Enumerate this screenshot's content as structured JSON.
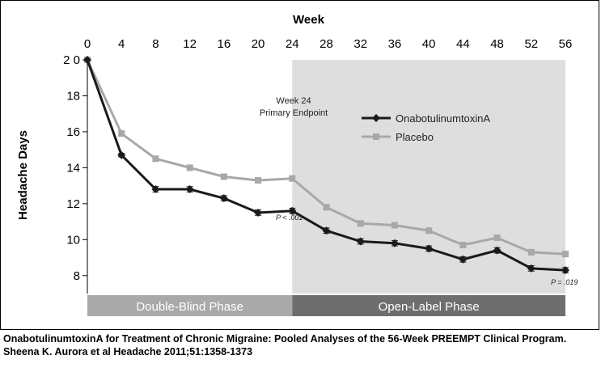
{
  "chart_data": {
    "type": "line",
    "title": "Week",
    "ylabel": "Headache Days",
    "xlim": [
      0,
      56
    ],
    "ylim": [
      7,
      20
    ],
    "x_ticks": [
      0,
      4,
      8,
      12,
      16,
      20,
      24,
      28,
      32,
      36,
      40,
      44,
      48,
      52,
      56
    ],
    "y_ticks": [
      {
        "value": 20,
        "label": "2 0"
      },
      {
        "value": 18,
        "label": "18"
      },
      {
        "value": 16,
        "label": "16"
      },
      {
        "value": 14,
        "label": "14"
      },
      {
        "value": 12,
        "label": "12"
      },
      {
        "value": 10,
        "label": "10"
      },
      {
        "value": 8,
        "label": "8"
      }
    ],
    "x": [
      0,
      4,
      8,
      12,
      16,
      20,
      24,
      28,
      32,
      36,
      40,
      44,
      48,
      52,
      56
    ],
    "series": [
      {
        "name": "OnabotulinumtoxinA",
        "color": "#1a1a1a",
        "marker": "diamond",
        "values": [
          20.0,
          14.7,
          12.8,
          12.8,
          12.3,
          11.5,
          11.6,
          10.5,
          9.9,
          9.8,
          9.5,
          8.9,
          9.4,
          8.4,
          8.3
        ],
        "error": [
          0,
          0.1,
          0.15,
          0.15,
          0.15,
          0.15,
          0.15,
          0.15,
          0.15,
          0.15,
          0.15,
          0.15,
          0.15,
          0.15,
          0.15
        ]
      },
      {
        "name": "Placebo",
        "color": "#a8a8a8",
        "marker": "square",
        "values": [
          20.0,
          15.9,
          14.5,
          14.0,
          13.5,
          13.3,
          13.4,
          11.8,
          10.9,
          10.8,
          10.5,
          9.7,
          10.1,
          9.3,
          9.2
        ],
        "error": [
          0,
          0.12,
          0.15,
          0.15,
          0.15,
          0.15,
          0.15,
          0.15,
          0.15,
          0.15,
          0.15,
          0.15,
          0.15,
          0.15,
          0.15
        ]
      }
    ],
    "annotations": {
      "week24_line1": "Week 24",
      "week24_line2": "Primary Endpoint",
      "p_week24": "P < .001",
      "p_week56": "P = .019"
    },
    "phases": [
      {
        "label": "Double-Blind Phase",
        "from": 0,
        "to": 24,
        "color": "#a9a9a9"
      },
      {
        "label": "Open-Label Phase",
        "from": 24,
        "to": 56,
        "color": "#6e6e6e"
      }
    ],
    "shaded_region": {
      "from": 24,
      "to": 56,
      "color": "#dedede"
    },
    "legend_position": "upper-right"
  },
  "caption": "OnabotulinumtoxinA for Treatment of Chronic Migraine: Pooled Analyses of the 56-Week PREEMPT Clinical Program. Sheena K. Aurora et al Headache 2011;51:1358-1373"
}
